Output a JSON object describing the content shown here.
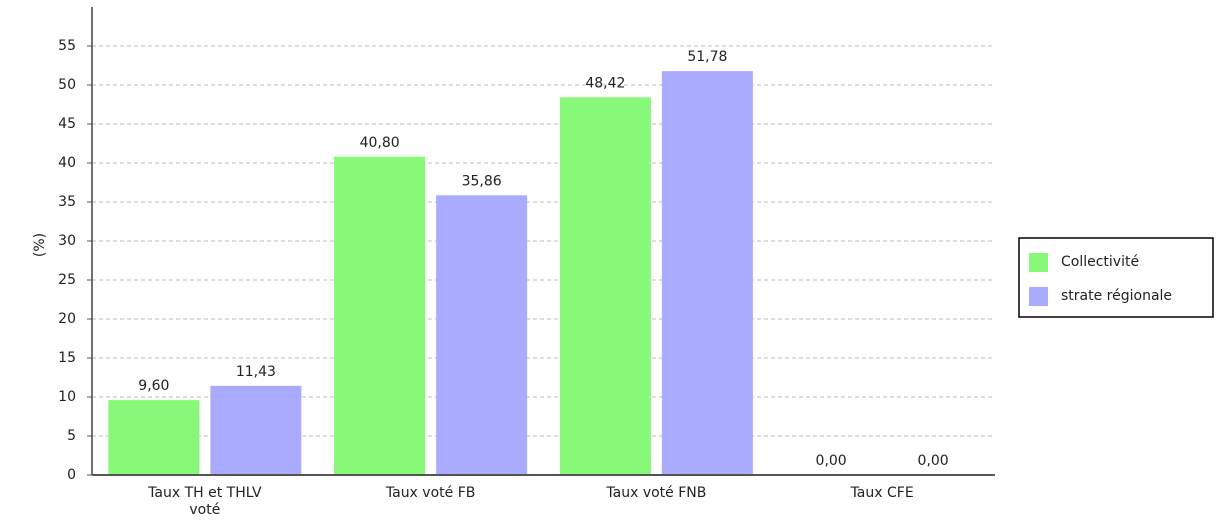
{
  "chart_data": {
    "type": "bar",
    "y_label": "(%)",
    "categories": [
      "Taux TH et THLV voté",
      "Taux voté FB",
      "Taux voté FNB",
      "Taux CFE"
    ],
    "series": [
      {
        "name": "Collectivité",
        "color": "#88f878",
        "values": [
          9.6,
          40.8,
          48.42,
          0.0
        ],
        "value_labels": [
          "9,60",
          "40,80",
          "48,42",
          "0,00"
        ]
      },
      {
        "name": "strate régionale",
        "color": "#aaaaff",
        "values": [
          11.43,
          35.86,
          51.78,
          0.0
        ],
        "value_labels": [
          "11,43",
          "35,86",
          "51,78",
          "0,00"
        ]
      }
    ],
    "ylim": [
      0,
      60
    ],
    "yticks": [
      0,
      5,
      10,
      15,
      20,
      25,
      30,
      35,
      40,
      45,
      50,
      55
    ],
    "grid": true,
    "legend": "right"
  }
}
